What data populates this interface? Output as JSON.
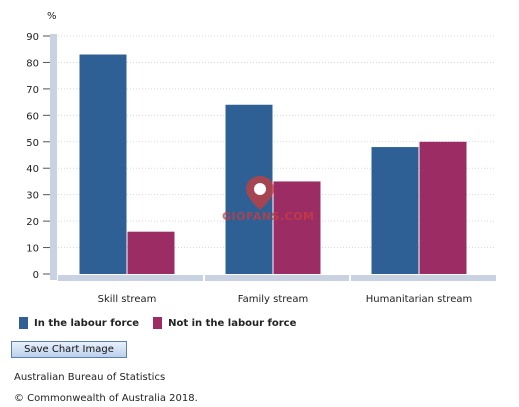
{
  "chart_data": {
    "type": "bar",
    "ylabel": "%",
    "ylim": [
      0,
      90
    ],
    "yticks": [
      0,
      10,
      20,
      30,
      40,
      50,
      60,
      70,
      80,
      90
    ],
    "grid": true,
    "categories": [
      "Skill stream",
      "Family stream",
      "Humanitarian stream"
    ],
    "series": [
      {
        "name": "In the labour force",
        "color": "#2e5f95",
        "values": [
          83,
          64,
          48
        ]
      },
      {
        "name": "Not in the labour force",
        "color": "#9b2c64",
        "values": [
          16,
          35,
          50
        ]
      }
    ],
    "legend_position": "bottom-left"
  },
  "legend": {
    "items": [
      {
        "label": "In the labour force",
        "color": "#2e5f95"
      },
      {
        "label": "Not in the labour force",
        "color": "#9b2c64"
      }
    ]
  },
  "buttons": {
    "save_chart": "Save Chart Image"
  },
  "footer": {
    "source": "Australian Bureau of Statistics",
    "copyright": "© Commonwealth of Australia 2018."
  },
  "watermark": {
    "text": "GIOFANS.COM",
    "color": "#cd3c3c",
    "icon": "map-pin-icon"
  },
  "colors": {
    "axis": "#c8d2e2",
    "grid": "#d8d8d8"
  }
}
